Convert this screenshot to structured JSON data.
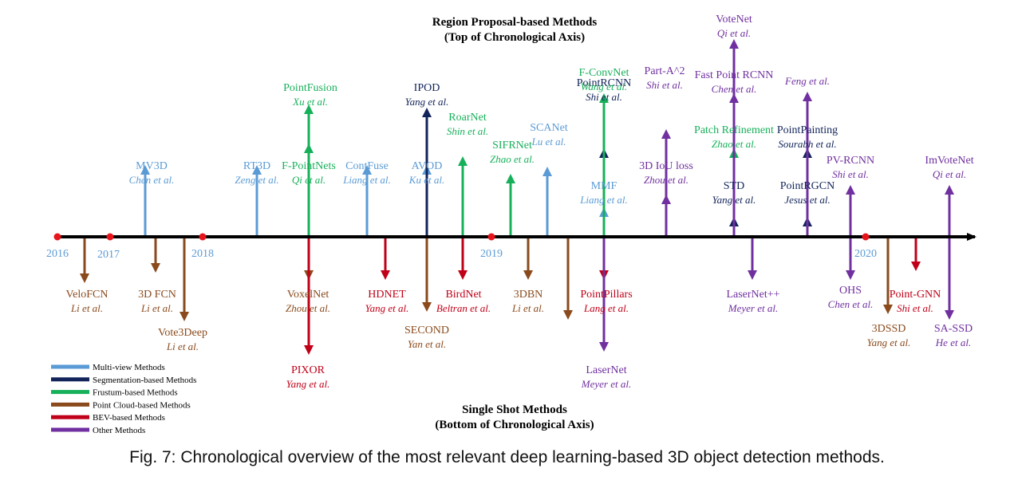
{
  "header_top": {
    "line1": "Region Proposal-based Methods",
    "line2": "(Top of Chronological Axis)"
  },
  "header_bottom": {
    "line1": "Single Shot Methods",
    "line2": "(Bottom of Chronological Axis)"
  },
  "caption": "Fig. 7: Chronological overview of the most relevant deep learning-based 3D object detection methods.",
  "years": [
    "2016",
    "2017",
    "2018",
    "2019",
    "2020"
  ],
  "legend": [
    {
      "label": "Multi-view Methods",
      "color": "#5b9bd5"
    },
    {
      "label": "Segmentation-based Methods",
      "color": "#12245a"
    },
    {
      "label": "Frustum-based Methods",
      "color": "#17b05a"
    },
    {
      "label": "Point Cloud-based Methods",
      "color": "#8a4a1c"
    },
    {
      "label": "BEV-based Methods",
      "color": "#c00018"
    },
    {
      "label": "Other Methods",
      "color": "#7030a0"
    }
  ],
  "methods": [
    {
      "name": "MV3D",
      "authors": "Chen et al.",
      "category": "Multi-view Methods"
    },
    {
      "name": "RT3D",
      "authors": "Zeng et al.",
      "category": "Multi-view Methods"
    },
    {
      "name": "F-PointNets",
      "authors": "Qi et al.",
      "category": "Frustum-based Methods"
    },
    {
      "name": "PointFusion",
      "authors": "Xu et al.",
      "category": "Frustum-based Methods"
    },
    {
      "name": "ContFuse",
      "authors": "Liang et al.",
      "category": "Multi-view Methods"
    },
    {
      "name": "AVOD",
      "authors": "Ku et al.",
      "category": "Multi-view Methods"
    },
    {
      "name": "IPOD",
      "authors": "Yang et al.",
      "category": "Segmentation-based Methods"
    },
    {
      "name": "RoarNet",
      "authors": "Shin et al.",
      "category": "Frustum-based Methods"
    },
    {
      "name": "SIFRNet",
      "authors": "Zhao et al.",
      "category": "Frustum-based Methods"
    },
    {
      "name": "SCANet",
      "authors": "Lu et al.",
      "category": "Multi-view Methods"
    },
    {
      "name": "MMF",
      "authors": "Liang et al.",
      "category": "Multi-view Methods"
    },
    {
      "name": "PointRCNN",
      "authors": "Shi et al.",
      "category": "Segmentation-based Methods"
    },
    {
      "name": "F-ConvNet",
      "authors": "Wang et al.",
      "category": "Frustum-based Methods"
    },
    {
      "name": "3D IoU loss",
      "authors": "Zhou et al.",
      "category": "Other Methods"
    },
    {
      "name": "Part-A^2",
      "authors": "Shi et al.",
      "category": "Other Methods"
    },
    {
      "name": "STD",
      "authors": "Yang et al.",
      "category": "Segmentation-based Methods"
    },
    {
      "name": "Patch Refinement",
      "authors": "Zhao et al.",
      "category": "Frustum-based Methods"
    },
    {
      "name": "Fast Point RCNN",
      "authors": "Chen et al.",
      "category": "Other Methods"
    },
    {
      "name": "VoteNet",
      "authors": "Qi et al.",
      "category": "Other Methods"
    },
    {
      "name": "PointRGCN",
      "authors": "Jesus et al.",
      "category": "Segmentation-based Methods"
    },
    {
      "name": "PointPainting",
      "authors": "Sourabh et al.",
      "category": "Segmentation-based Methods"
    },
    {
      "name": "",
      "authors": "Feng et al.",
      "category": "Other Methods"
    },
    {
      "name": "PV-RCNN",
      "authors": "Shi et al.",
      "category": "Other Methods"
    },
    {
      "name": "ImVoteNet",
      "authors": "Qi et al.",
      "category": "Other Methods"
    },
    {
      "name": "VeloFCN",
      "authors": "Li et al.",
      "category": "Point Cloud-based Methods"
    },
    {
      "name": "3D FCN",
      "authors": "Li et al.",
      "category": "Point Cloud-based Methods"
    },
    {
      "name": "Vote3Deep",
      "authors": "Li et al.",
      "category": "Point Cloud-based Methods"
    },
    {
      "name": "VoxelNet",
      "authors": "Zhou et al.",
      "category": "Point Cloud-based Methods"
    },
    {
      "name": "PIXOR",
      "authors": "Yang et al.",
      "category": "BEV-based Methods"
    },
    {
      "name": "HDNET",
      "authors": "Yang et al.",
      "category": "BEV-based Methods"
    },
    {
      "name": "SECOND",
      "authors": "Yan et al.",
      "category": "Point Cloud-based Methods"
    },
    {
      "name": "BirdNet",
      "authors": "Beltran et al.",
      "category": "BEV-based Methods"
    },
    {
      "name": "3DBN",
      "authors": "Li et al.",
      "category": "Point Cloud-based Methods"
    },
    {
      "name": "",
      "authors": "",
      "category": "Point Cloud-based Methods"
    },
    {
      "name": "PointPillars",
      "authors": "Lang et al.",
      "category": "BEV-based Methods"
    },
    {
      "name": "LaserNet",
      "authors": "Meyer et al.",
      "category": "Other Methods"
    },
    {
      "name": "LaserNet++",
      "authors": "Meyer et al.",
      "category": "Other Methods"
    },
    {
      "name": "OHS",
      "authors": "Chen et al.",
      "category": "Other Methods"
    },
    {
      "name": "3DSSD",
      "authors": "Yang et al.",
      "category": "Point Cloud-based Methods"
    },
    {
      "name": "Point-GNN",
      "authors": "Shi et al.",
      "category": "BEV-based Methods"
    },
    {
      "name": "SA-SSD",
      "authors": "He et al.",
      "category": "Other Methods"
    }
  ]
}
